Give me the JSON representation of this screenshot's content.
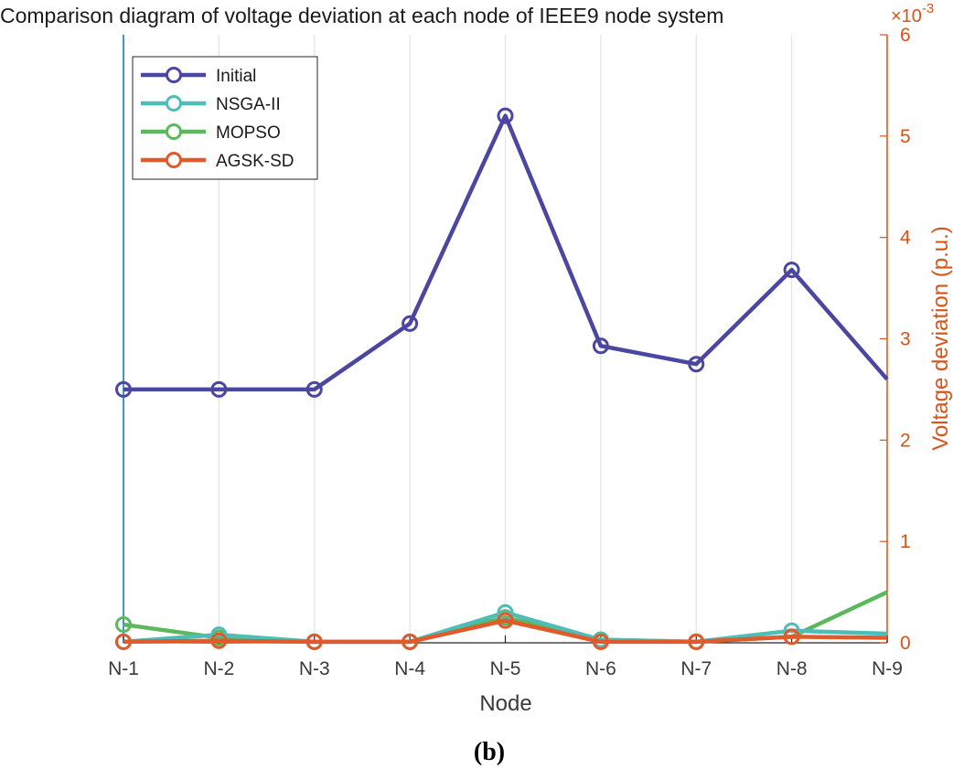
{
  "chart_data": {
    "type": "line",
    "title": "Comparison diagram of voltage deviation at each node of IEEE9 node system",
    "xlabel": "Node",
    "ylabel": "Voltage deviation (p.u.)",
    "y_exponent_label": "×10",
    "y_exponent_power": "-3",
    "categories": [
      "N-1",
      "N-2",
      "N-3",
      "N-4",
      "N-5",
      "N-6",
      "N-7",
      "N-8",
      "N-9"
    ],
    "ylim": [
      0,
      6
    ],
    "yticks": [
      "0",
      "1",
      "2",
      "3",
      "4",
      "5",
      "6"
    ],
    "grid": "vertical",
    "legend_position": "top-left",
    "caption": "(b)",
    "series": [
      {
        "name": "Initial",
        "color": "#4b47a0",
        "values": [
          2.5,
          2.5,
          2.5,
          3.15,
          5.2,
          2.93,
          2.75,
          3.68,
          2.6
        ]
      },
      {
        "name": "NSGA-II",
        "color": "#4dbeb6",
        "values": [
          0.01,
          0.08,
          0.01,
          0.01,
          0.3,
          0.03,
          0.01,
          0.12,
          0.09
        ]
      },
      {
        "name": "MOPSO",
        "color": "#5cb85c",
        "values": [
          0.18,
          0.05,
          0.01,
          0.01,
          0.25,
          0.03,
          0.01,
          0.06,
          0.5
        ]
      },
      {
        "name": "AGSK-SD",
        "color": "#e05a2b",
        "values": [
          0.01,
          0.02,
          0.01,
          0.01,
          0.22,
          0.01,
          0.01,
          0.06,
          0.05
        ]
      }
    ]
  }
}
